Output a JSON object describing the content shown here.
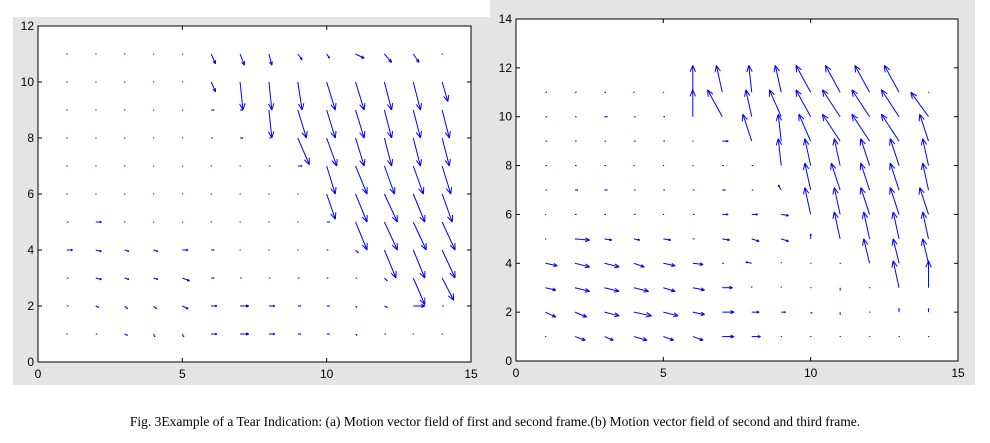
{
  "caption": "Fig. 3Example of a Tear Indication: (a) Motion vector field of first and second frame.(b) Motion vector field of second and third frame.",
  "colors": {
    "arrow": "#0000ff",
    "panel_bg": "#e4e4e4"
  },
  "chart_data": [
    {
      "type": "quiver",
      "title": "(a) Motion vector field of first and second frame",
      "xlim": [
        0,
        15
      ],
      "ylim": [
        0,
        12
      ],
      "xticks": [
        0,
        5,
        10,
        15
      ],
      "yticks": [
        0,
        2,
        4,
        6,
        8,
        10,
        12
      ],
      "grid_x": [
        1,
        2,
        3,
        4,
        5,
        6,
        7,
        8,
        9,
        10,
        11,
        12,
        13,
        14
      ],
      "grid_y": [
        1,
        2,
        3,
        4,
        5,
        6,
        7,
        8,
        9,
        10,
        11
      ],
      "vectors_uv_by_row": [
        [
          [
            0,
            0
          ],
          [
            0.05,
            0
          ],
          [
            0.1,
            -0.05
          ],
          [
            0.05,
            -0.1
          ],
          [
            0.05,
            -0.1
          ],
          [
            0.2,
            0
          ],
          [
            0.3,
            0
          ],
          [
            0.2,
            0
          ],
          [
            0.1,
            0
          ],
          [
            0.1,
            0
          ],
          [
            0.05,
            -0.05
          ],
          [
            0.05,
            0
          ],
          [
            0,
            0
          ],
          [
            0,
            0
          ]
        ],
        [
          [
            0.05,
            0
          ],
          [
            0.1,
            -0.05
          ],
          [
            0.1,
            -0.1
          ],
          [
            0.1,
            -0.1
          ],
          [
            0.2,
            -0.1
          ],
          [
            0.2,
            0
          ],
          [
            0.3,
            0
          ],
          [
            0.2,
            0
          ],
          [
            0.1,
            0
          ],
          [
            0.1,
            0
          ],
          [
            0.05,
            -0.05
          ],
          [
            0.1,
            -0.05
          ],
          [
            0.4,
            0
          ],
          [
            0.05,
            0
          ]
        ],
        [
          [
            0.05,
            0
          ],
          [
            0.2,
            -0.05
          ],
          [
            0.15,
            -0.05
          ],
          [
            0.15,
            -0.05
          ],
          [
            0.25,
            -0.1
          ],
          [
            0.1,
            0
          ],
          [
            0.05,
            0
          ],
          [
            0.05,
            0
          ],
          [
            0.05,
            0
          ],
          [
            0.05,
            0
          ],
          [
            0.05,
            0
          ],
          [
            0.1,
            -0.1
          ],
          [
            0.4,
            -0.95
          ],
          [
            0.4,
            -0.8
          ]
        ],
        [
          [
            0.2,
            0
          ],
          [
            0.2,
            -0.05
          ],
          [
            0.15,
            -0.05
          ],
          [
            0.15,
            -0.05
          ],
          [
            0.2,
            0
          ],
          [
            0.1,
            0
          ],
          [
            0,
            0
          ],
          [
            0,
            0
          ],
          [
            0,
            0
          ],
          [
            0.05,
            0
          ],
          [
            0.1,
            -0.1
          ],
          [
            0.4,
            -1
          ],
          [
            0.4,
            -1
          ],
          [
            0.45,
            -1
          ]
        ],
        [
          [
            0.05,
            0
          ],
          [
            0.2,
            0
          ],
          [
            0,
            0
          ],
          [
            0,
            0
          ],
          [
            0,
            0
          ],
          [
            0,
            0
          ],
          [
            0,
            0
          ],
          [
            0,
            0
          ],
          [
            0,
            0
          ],
          [
            0.1,
            0
          ],
          [
            0.4,
            -1
          ],
          [
            0.45,
            -1
          ],
          [
            0.45,
            -1
          ],
          [
            0.45,
            -1
          ]
        ],
        [
          [
            0,
            0
          ],
          [
            0,
            0
          ],
          [
            0,
            0
          ],
          [
            0,
            0
          ],
          [
            0,
            0
          ],
          [
            0,
            0
          ],
          [
            0,
            0
          ],
          [
            0,
            0
          ],
          [
            0,
            0
          ],
          [
            0.3,
            -0.9
          ],
          [
            0.4,
            -1
          ],
          [
            0.45,
            -1
          ],
          [
            0.4,
            -1
          ],
          [
            0.35,
            -1
          ]
        ],
        [
          [
            0,
            0
          ],
          [
            0,
            0
          ],
          [
            0,
            0
          ],
          [
            0,
            0
          ],
          [
            0,
            0
          ],
          [
            0,
            0
          ],
          [
            0,
            0
          ],
          [
            0.05,
            0
          ],
          [
            0.15,
            0
          ],
          [
            0.3,
            -1
          ],
          [
            0.4,
            -1
          ],
          [
            0.35,
            -1
          ],
          [
            0.35,
            -1
          ],
          [
            0.3,
            -1
          ]
        ],
        [
          [
            0,
            0
          ],
          [
            0,
            0
          ],
          [
            0,
            0
          ],
          [
            0,
            0
          ],
          [
            0,
            0
          ],
          [
            0.05,
            0
          ],
          [
            0.1,
            0
          ],
          [
            0.05,
            0
          ],
          [
            0.4,
            -0.95
          ],
          [
            0.35,
            -1
          ],
          [
            0.3,
            -1
          ],
          [
            0.25,
            -1
          ],
          [
            0.25,
            -1
          ],
          [
            0.25,
            -1
          ]
        ],
        [
          [
            0,
            0
          ],
          [
            0,
            0
          ],
          [
            0,
            0
          ],
          [
            0,
            0
          ],
          [
            0,
            0
          ],
          [
            0.1,
            0
          ],
          [
            0.1,
            0
          ],
          [
            0.1,
            -1
          ],
          [
            0.3,
            -1
          ],
          [
            0.3,
            -1
          ],
          [
            0.3,
            -1
          ],
          [
            0.25,
            -1
          ],
          [
            0.25,
            -1
          ],
          [
            0.25,
            -1
          ]
        ],
        [
          [
            0,
            0
          ],
          [
            0,
            0
          ],
          [
            0,
            0
          ],
          [
            0,
            0
          ],
          [
            0,
            0
          ],
          [
            0.15,
            -0.35
          ],
          [
            0.1,
            -1
          ],
          [
            0.1,
            -1
          ],
          [
            0.15,
            -1
          ],
          [
            0.3,
            -1
          ],
          [
            0.3,
            -1
          ],
          [
            0.25,
            -1
          ],
          [
            0.25,
            -1
          ],
          [
            0.2,
            -0.7
          ]
        ],
        [
          [
            0,
            0
          ],
          [
            0,
            0
          ],
          [
            0,
            0
          ],
          [
            0,
            0
          ],
          [
            0,
            0
          ],
          [
            0.15,
            -0.35
          ],
          [
            0.15,
            -0.4
          ],
          [
            0.1,
            -0.4
          ],
          [
            0.15,
            -0.2
          ],
          [
            0.1,
            -0.15
          ],
          [
            0.3,
            -0.15
          ],
          [
            0.25,
            -0.3
          ],
          [
            0.2,
            -0.3
          ],
          [
            0,
            0
          ]
        ]
      ]
    },
    {
      "type": "quiver",
      "title": "(b) Motion vector field of second and third frame",
      "xlim": [
        0,
        15
      ],
      "ylim": [
        0,
        14
      ],
      "xticks": [
        0,
        5,
        10,
        15
      ],
      "yticks": [
        0,
        2,
        4,
        6,
        8,
        10,
        12,
        14
      ],
      "grid_x": [
        1,
        2,
        3,
        4,
        5,
        6,
        7,
        8,
        9,
        10,
        11,
        12,
        13,
        14
      ],
      "grid_y": [
        1,
        2,
        3,
        4,
        5,
        6,
        7,
        8,
        9,
        10,
        11
      ],
      "vectors_uv_by_row": [
        [
          [
            0,
            0
          ],
          [
            0.35,
            -0.15
          ],
          [
            0.3,
            -0.15
          ],
          [
            0.45,
            -0.15
          ],
          [
            0.35,
            -0.15
          ],
          [
            0.35,
            -0.15
          ],
          [
            0.4,
            0
          ],
          [
            0.3,
            0
          ],
          [
            0,
            0
          ],
          [
            0,
            0
          ],
          [
            0,
            0
          ],
          [
            0,
            0
          ],
          [
            0,
            0
          ],
          [
            0,
            0
          ]
        ],
        [
          [
            0.35,
            -0.2
          ],
          [
            0.4,
            -0.2
          ],
          [
            0.5,
            -0.15
          ],
          [
            0.6,
            -0.15
          ],
          [
            0.5,
            -0.15
          ],
          [
            0.4,
            -0.1
          ],
          [
            0.4,
            0
          ],
          [
            0.25,
            0
          ],
          [
            0.15,
            0
          ],
          [
            0.05,
            -0.05
          ],
          [
            0,
            -0.1
          ],
          [
            0,
            0
          ],
          [
            0,
            0.15
          ],
          [
            0,
            0.15
          ]
        ],
        [
          [
            0.35,
            -0.1
          ],
          [
            0.5,
            -0.15
          ],
          [
            0.5,
            -0.15
          ],
          [
            0.5,
            -0.15
          ],
          [
            0.4,
            -0.15
          ],
          [
            0.4,
            -0.1
          ],
          [
            0.35,
            0
          ],
          [
            0,
            0.05
          ],
          [
            0,
            0.05
          ],
          [
            0,
            0
          ],
          [
            0,
            -0.1
          ],
          [
            0,
            0
          ],
          [
            -0.2,
            1.1
          ],
          [
            0,
            1.1
          ]
        ],
        [
          [
            0.4,
            -0.1
          ],
          [
            0.5,
            -0.15
          ],
          [
            0.5,
            -0.15
          ],
          [
            0.35,
            -0.15
          ],
          [
            0.4,
            -0.1
          ],
          [
            0.35,
            -0.05
          ],
          [
            0.05,
            0
          ],
          [
            -0.2,
            0.05
          ],
          [
            0,
            0.05
          ],
          [
            0,
            0
          ],
          [
            0,
            0
          ],
          [
            -0.2,
            1
          ],
          [
            -0.2,
            1
          ],
          [
            -0.2,
            1
          ]
        ],
        [
          [
            0,
            0
          ],
          [
            0.5,
            -0.05
          ],
          [
            0.25,
            -0.05
          ],
          [
            0.2,
            -0.05
          ],
          [
            0.25,
            -0.05
          ],
          [
            0.05,
            0
          ],
          [
            0.25,
            -0.05
          ],
          [
            0.25,
            -0.1
          ],
          [
            0.25,
            -0.1
          ],
          [
            0,
            0.2
          ],
          [
            -0.2,
            1.1
          ],
          [
            -0.2,
            1.1
          ],
          [
            -0.2,
            1.1
          ],
          [
            -0.2,
            1.1
          ]
        ],
        [
          [
            0,
            0
          ],
          [
            0.05,
            0
          ],
          [
            0.05,
            0
          ],
          [
            0.05,
            0
          ],
          [
            0,
            0
          ],
          [
            0.05,
            0
          ],
          [
            0.2,
            0
          ],
          [
            0.2,
            0
          ],
          [
            0.25,
            -0.05
          ],
          [
            -0.2,
            1.1
          ],
          [
            -0.2,
            1.1
          ],
          [
            -0.3,
            1.1
          ],
          [
            -0.3,
            1.1
          ],
          [
            -0.3,
            1.1
          ]
        ],
        [
          [
            0.05,
            0
          ],
          [
            0.1,
            0
          ],
          [
            0.1,
            0
          ],
          [
            0.05,
            0
          ],
          [
            0.05,
            0
          ],
          [
            0.05,
            0
          ],
          [
            0.1,
            0
          ],
          [
            0.05,
            0
          ],
          [
            -0.1,
            0.2
          ],
          [
            -0.2,
            1.1
          ],
          [
            -0.3,
            1.1
          ],
          [
            -0.3,
            1.1
          ],
          [
            -0.3,
            1.1
          ],
          [
            -0.2,
            1.1
          ]
        ],
        [
          [
            0.05,
            0
          ],
          [
            0.05,
            0
          ],
          [
            0.05,
            0
          ],
          [
            0,
            0
          ],
          [
            0,
            0
          ],
          [
            0,
            0
          ],
          [
            0.05,
            0
          ],
          [
            0.05,
            0
          ],
          [
            -0.1,
            1.1
          ],
          [
            -0.2,
            1.1
          ],
          [
            -0.2,
            1.1
          ],
          [
            -0.3,
            1.1
          ],
          [
            -0.3,
            1.1
          ],
          [
            -0.2,
            1.1
          ]
        ],
        [
          [
            0.05,
            0
          ],
          [
            0.05,
            0
          ],
          [
            0.05,
            0
          ],
          [
            0.05,
            0
          ],
          [
            0.05,
            0
          ],
          [
            0,
            0
          ],
          [
            0.2,
            0
          ],
          [
            -0.3,
            1.1
          ],
          [
            -0.1,
            1.1
          ],
          [
            -0.4,
            1.1
          ],
          [
            -0.6,
            1.1
          ],
          [
            -0.6,
            1.1
          ],
          [
            -0.6,
            1.1
          ],
          [
            -0.3,
            1.1
          ]
        ],
        [
          [
            0.05,
            0
          ],
          [
            0.05,
            0
          ],
          [
            0.1,
            0
          ],
          [
            0.05,
            0
          ],
          [
            0.05,
            0
          ],
          [
            0,
            1.1
          ],
          [
            -0.5,
            1.1
          ],
          [
            -0.2,
            1.1
          ],
          [
            -0.4,
            1.1
          ],
          [
            -0.5,
            1.1
          ],
          [
            -0.6,
            1.1
          ],
          [
            -0.6,
            1.1
          ],
          [
            -0.6,
            1.1
          ],
          [
            -0.6,
            1.0
          ]
        ],
        [
          [
            0.05,
            0
          ],
          [
            0.05,
            0
          ],
          [
            0.05,
            0
          ],
          [
            0,
            0
          ],
          [
            0,
            0
          ],
          [
            0,
            1.1
          ],
          [
            -0.2,
            1.1
          ],
          [
            -0.1,
            1.1
          ],
          [
            -0.2,
            1.1
          ],
          [
            -0.5,
            1.1
          ],
          [
            -0.5,
            1.1
          ],
          [
            -0.5,
            1.1
          ],
          [
            -0.5,
            1.1
          ],
          [
            0,
            0
          ]
        ]
      ]
    }
  ]
}
